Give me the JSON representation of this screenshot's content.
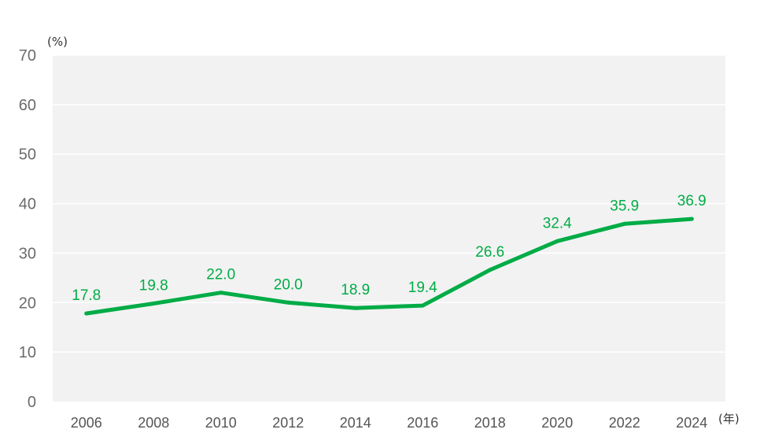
{
  "chart_data": {
    "type": "line",
    "title": "",
    "xlabel": "",
    "ylabel": "",
    "y_unit": "(%)",
    "x_unit": "(年)",
    "ylim": [
      0,
      70
    ],
    "y_ticks": [
      0,
      10,
      20,
      30,
      40,
      50,
      60,
      70
    ],
    "categories": [
      "2006",
      "2008",
      "2010",
      "2012",
      "2014",
      "2016",
      "2018",
      "2020",
      "2022",
      "2024"
    ],
    "series": [
      {
        "values": [
          17.8,
          19.8,
          22.0,
          20.0,
          18.9,
          19.4,
          26.6,
          32.4,
          35.9,
          36.9
        ],
        "labels": [
          "17.8",
          "19.8",
          "22.0",
          "20.0",
          "18.9",
          "19.4",
          "26.6",
          "32.4",
          "35.9",
          "36.9"
        ],
        "color": "#00ac46"
      }
    ],
    "grid": true,
    "legend": "none",
    "plot_background": "#f2f2f2",
    "grid_color": "#ffffff"
  }
}
